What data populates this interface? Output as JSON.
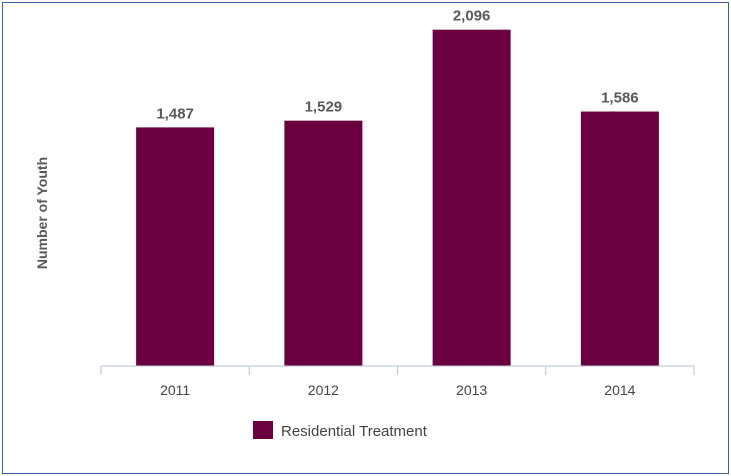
{
  "chart_data": {
    "type": "bar",
    "categories": [
      "2011",
      "2012",
      "2013",
      "2014"
    ],
    "series": [
      {
        "name": "Residential Treatment",
        "values": [
          1487,
          1529,
          2096,
          1586
        ]
      }
    ],
    "value_labels": [
      "1,487",
      "1,529",
      "2,096",
      "1,586"
    ],
    "ylabel": "Number of Youth",
    "xlabel": "",
    "ylim": [
      0,
      2200
    ],
    "grid": false,
    "legend_position": "bottom",
    "colors": {
      "bar": "#6b0040",
      "axis": "#b7c3d7",
      "frame": "#3d5ea8"
    }
  }
}
